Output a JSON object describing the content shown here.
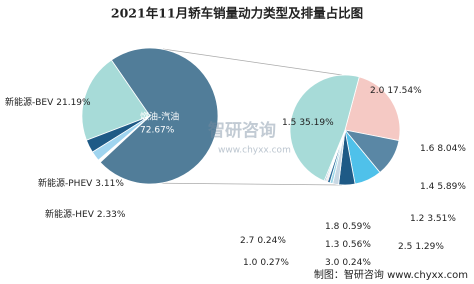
{
  "title": "2021年11月轿车销量动力类型及排量占比图",
  "source": "制图：智研咨询 www.chyxx.com",
  "watermark": {
    "name": "智研咨询",
    "url": "www.chyxx.com"
  },
  "chart_data": [
    {
      "type": "pie",
      "categories": [
        "燃油-汽油",
        "新能源-BEV",
        "新能源-PHEV",
        "新能源-HEV"
      ],
      "values": [
        72.67,
        21.19,
        3.11,
        2.33
      ],
      "value_labels": [
        "72.67%",
        "21.19%",
        "3.11%",
        "2.33%"
      ],
      "colors": [
        "#517d99",
        "#a7dbd8",
        "#1e5a86",
        "#9fd4ef"
      ]
    },
    {
      "type": "pie",
      "categories": [
        "2.0",
        "1.6",
        "1.4",
        "1.2",
        "2.5",
        "1.8",
        "1.3",
        "2.7",
        "3.0",
        "1.0",
        "1.5"
      ],
      "values": [
        17.54,
        8.04,
        5.89,
        3.51,
        1.29,
        0.59,
        0.56,
        0.24,
        0.24,
        0.27,
        35.19
      ],
      "value_labels": [
        "17.54%",
        "8.04%",
        "5.89%",
        "3.51%",
        "1.29%",
        "0.59%",
        "0.56%",
        "0.24%",
        "0.24%",
        "0.27%",
        "35.19%"
      ],
      "colors": [
        "#f5c9c4",
        "#5a87a5",
        "#4fc1ea",
        "#1e5a86",
        "#c8d8e4",
        "#9bd7e8",
        "#2d6e9b",
        "#e8a3a0",
        "#aab8c2",
        "#6fa3c6",
        "#a7dbd8"
      ]
    }
  ]
}
